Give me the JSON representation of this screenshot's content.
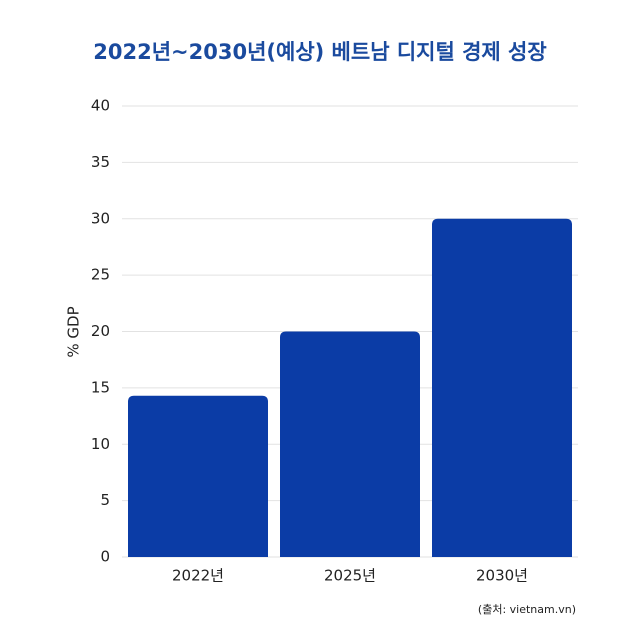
{
  "chart_data": {
    "type": "bar",
    "title": "2022년~2030년(예상) 베트남 디지털 경제 성장",
    "y_label": "% GDP",
    "source": "(출처: vietnam.vn)",
    "categories": [
      "2022년",
      "2025년",
      "2030년"
    ],
    "values": [
      14.3,
      20,
      30
    ],
    "color": "#0b3ca6",
    "ylim": [
      0,
      40
    ],
    "yticks": [
      0,
      5,
      10,
      15,
      20,
      25,
      30,
      35,
      40
    ],
    "grid": true
  }
}
